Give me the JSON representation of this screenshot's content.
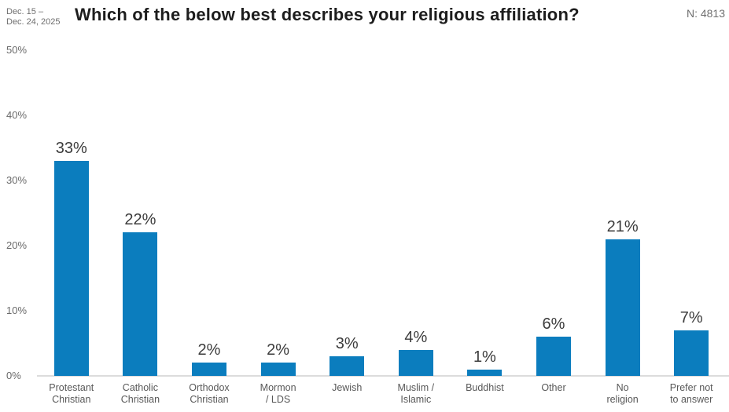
{
  "header": {
    "date_range_line1": "Dec. 15 –",
    "date_range_line2": "Dec. 24, 2025",
    "title": "Which of the below best describes your religious affiliation?",
    "sample_size": "N: 4813"
  },
  "chart_data": {
    "type": "bar",
    "title": "Which of the below best describes your religious affiliation?",
    "categories": [
      "Protestant Christian",
      "Catholic Christian",
      "Orthodox Christian",
      "Mormon / LDS",
      "Jewish",
      "Muslim / Islamic",
      "Buddhist",
      "Other",
      "No religion",
      "Prefer not to answer"
    ],
    "category_label_lines": [
      [
        "Protestant",
        "Christian"
      ],
      [
        "Catholic",
        "Christian"
      ],
      [
        "Orthodox",
        "Christian"
      ],
      [
        "Mormon",
        "/ LDS"
      ],
      [
        "Jewish"
      ],
      [
        "Muslim /",
        "Islamic"
      ],
      [
        "Buddhist"
      ],
      [
        "Other"
      ],
      [
        "No",
        "religion"
      ],
      [
        "Prefer not",
        "to answer"
      ]
    ],
    "values": [
      33,
      22,
      2,
      2,
      3,
      4,
      1,
      6,
      21,
      7
    ],
    "value_labels": [
      "33%",
      "22%",
      "2%",
      "2%",
      "3%",
      "4%",
      "1%",
      "6%",
      "21%",
      "7%"
    ],
    "xlabel": "",
    "ylabel": "",
    "ylim": [
      0,
      50
    ],
    "y_tick_labels": [
      "50%",
      "40%",
      "30%",
      "20%",
      "10%",
      "0%"
    ],
    "y_tick_values": [
      50,
      40,
      30,
      20,
      10,
      0
    ],
    "grid": false,
    "legend_position": "none",
    "colors": {
      "bar": "#0b7dbe",
      "axis_line": "#dcdcdc",
      "value_label": "#3c3c3c",
      "category_label": "#585858",
      "tick_label": "#6a6a6a",
      "title": "#1d1d1d",
      "meta_text": "#6e6e6e"
    }
  }
}
